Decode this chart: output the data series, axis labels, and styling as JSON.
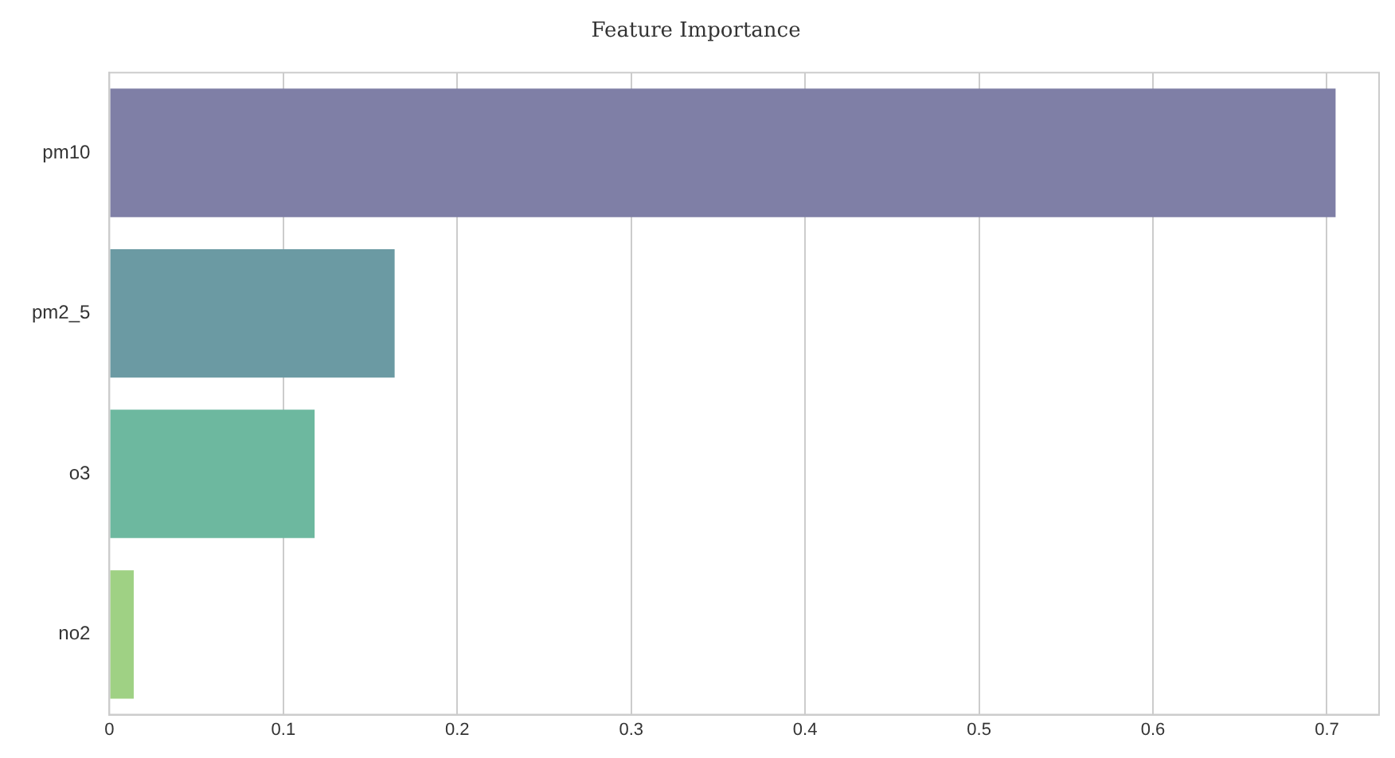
{
  "chart_data": {
    "type": "bar",
    "orientation": "horizontal",
    "title": "Feature Importance",
    "categories": [
      "pm10",
      "pm2_5",
      "o3",
      "no2"
    ],
    "values": [
      0.705,
      0.164,
      0.118,
      0.014
    ],
    "colors": [
      "#7f7fa6",
      "#6b9aa3",
      "#6db89f",
      "#9fd184"
    ],
    "xlim": [
      0,
      0.73
    ],
    "xticks": [
      0,
      0.1,
      0.2,
      0.3,
      0.4,
      0.5,
      0.6,
      0.7
    ],
    "grid": "x"
  }
}
